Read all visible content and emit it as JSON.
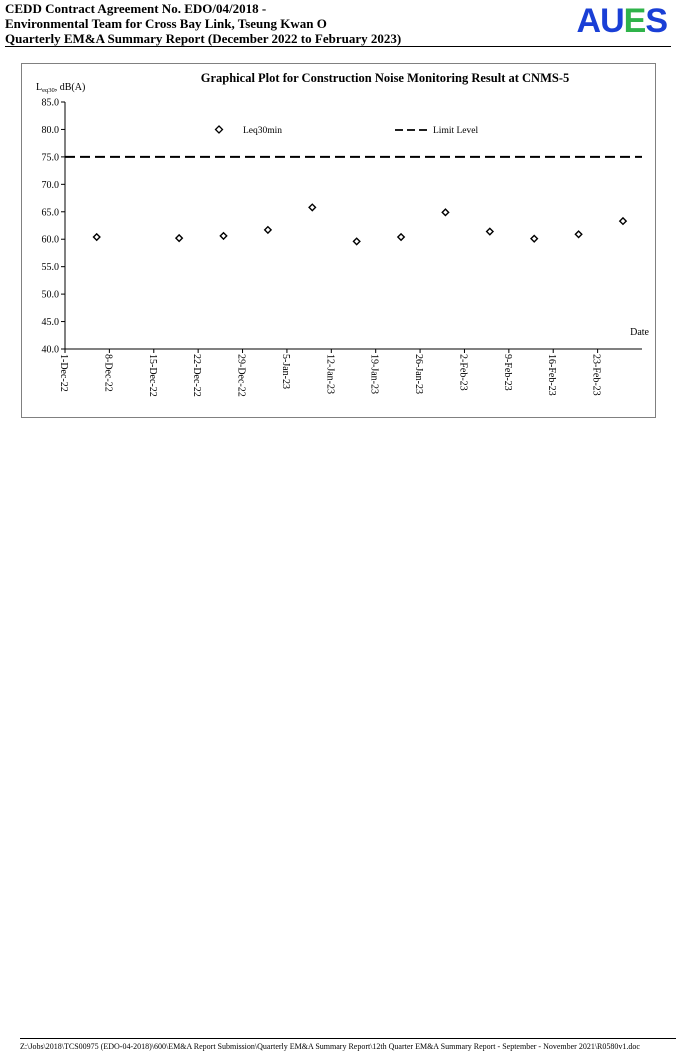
{
  "header": {
    "line1": "CEDD Contract Agreement No. EDO/04/2018 -",
    "line2": "Environmental Team for Cross Bay Link, Tseung Kwan O",
    "line3": "Quarterly EM&A Summary Report (December 2022 to February 2023)",
    "logo": {
      "letters": [
        {
          "char": "A",
          "color": "#1a3fd6"
        },
        {
          "char": "U",
          "color": "#1a3fd6"
        },
        {
          "char": "E",
          "color": "#2fb34a"
        },
        {
          "char": "S",
          "color": "#1a3fd6"
        }
      ]
    }
  },
  "chart_data": {
    "type": "scatter",
    "title": "Graphical Plot for Construction Noise Monitoring Result at CNMS-5",
    "ylabel_main": "L",
    "ylabel_sub": "eq30",
    "ylabel_rest": ", dB(A)",
    "xlabel": "Date",
    "ylim": [
      40.0,
      85.0
    ],
    "yticks": [
      "40.0",
      "45.0",
      "50.0",
      "55.0",
      "60.0",
      "65.0",
      "70.0",
      "75.0",
      "80.0",
      "85.0"
    ],
    "xlim": [
      "2022-12-01",
      "2023-03-02"
    ],
    "xticks": [
      {
        "date": "2022-12-01",
        "label": "1-Dec-22"
      },
      {
        "date": "2022-12-08",
        "label": "8-Dec-22"
      },
      {
        "date": "2022-12-15",
        "label": "15-Dec-22"
      },
      {
        "date": "2022-12-22",
        "label": "22-Dec-22"
      },
      {
        "date": "2022-12-29",
        "label": "29-Dec-22"
      },
      {
        "date": "2023-01-05",
        "label": "5-Jan-23"
      },
      {
        "date": "2023-01-12",
        "label": "12-Jan-23"
      },
      {
        "date": "2023-01-19",
        "label": "19-Jan-23"
      },
      {
        "date": "2023-01-26",
        "label": "26-Jan-23"
      },
      {
        "date": "2023-02-02",
        "label": "2-Feb-23"
      },
      {
        "date": "2023-02-09",
        "label": "9-Feb-23"
      },
      {
        "date": "2023-02-16",
        "label": "16-Feb-23"
      },
      {
        "date": "2023-02-23",
        "label": "23-Feb-23"
      }
    ],
    "series": [
      {
        "name": "Leq30min",
        "marker": "diamond",
        "points": [
          {
            "x": "2022-12-06",
            "y": 60.4
          },
          {
            "x": "2022-12-19",
            "y": 60.2
          },
          {
            "x": "2022-12-26",
            "y": 60.6
          },
          {
            "x": "2023-01-02",
            "y": 61.7
          },
          {
            "x": "2023-01-09",
            "y": 65.8
          },
          {
            "x": "2023-01-16",
            "y": 59.6
          },
          {
            "x": "2023-01-23",
            "y": 60.4
          },
          {
            "x": "2023-01-30",
            "y": 64.9
          },
          {
            "x": "2023-02-06",
            "y": 61.4
          },
          {
            "x": "2023-02-13",
            "y": 60.1
          },
          {
            "x": "2023-02-20",
            "y": 60.9
          },
          {
            "x": "2023-02-27",
            "y": 63.3
          }
        ]
      }
    ],
    "limit": {
      "name": "Limit Level",
      "value": 75.0,
      "style": "dashed"
    },
    "grid": false,
    "legend_position": "top"
  },
  "footer": {
    "path": "Z:\\Jobs\\2018\\TCS00975 (EDO-04-2018)\\600\\EM&A Report Submission\\Quarterly EM&A Summary Report\\12th Quarter EM&A Summary Report - September - November 2021\\R0580v1.doc"
  }
}
